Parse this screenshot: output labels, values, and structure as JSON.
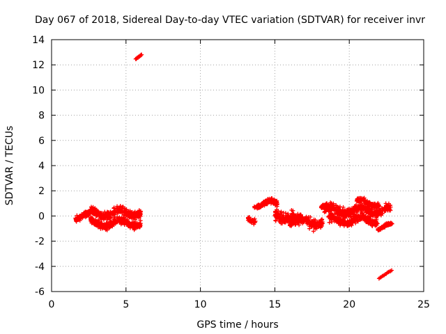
{
  "chart_data": {
    "type": "scatter",
    "title": "Day 067 of 2018, Sidereal Day-to-day VTEC variation (SDTVAR) for receiver invr",
    "xlabel": "GPS time / hours",
    "ylabel": "SDTVAR / TECUs",
    "xlim": [
      0,
      25
    ],
    "ylim": [
      -6,
      14
    ],
    "xticks": [
      0,
      5,
      10,
      15,
      20,
      25
    ],
    "yticks": [
      -6,
      -4,
      -2,
      0,
      2,
      4,
      6,
      8,
      10,
      12,
      14
    ],
    "grid": true,
    "marker": "plus",
    "color": "#ff0000",
    "clusters": [
      {
        "x_range": [
          1.6,
          2.6
        ],
        "y_center": 0.0,
        "y_spread": 0.35
      },
      {
        "x_range": [
          2.6,
          6.0
        ],
        "y_center": 0.25,
        "y_spread": 0.45
      },
      {
        "x_range": [
          2.6,
          6.0
        ],
        "y_center": -0.55,
        "y_spread": 0.4
      },
      {
        "x_range": [
          13.2,
          13.7
        ],
        "y_center": -0.2,
        "y_spread": 0.3
      },
      {
        "x_range": [
          13.6,
          15.2
        ],
        "y_center": 0.95,
        "y_spread": 0.3
      },
      {
        "x_range": [
          15.0,
          16.3
        ],
        "y_center": 0.0,
        "y_spread": 0.6
      },
      {
        "x_range": [
          16.0,
          18.2
        ],
        "y_center": -0.45,
        "y_spread": 0.6
      },
      {
        "x_range": [
          18.1,
          18.5
        ],
        "y_center": 0.8,
        "y_spread": 0.15
      },
      {
        "x_range": [
          18.3,
          22.8
        ],
        "y_center": 0.45,
        "y_spread": 0.5
      },
      {
        "x_range": [
          18.6,
          21.9
        ],
        "y_center": -0.35,
        "y_spread": 0.45
      },
      {
        "x_range": [
          21.9,
          22.9
        ],
        "y_center": -0.85,
        "y_spread": 0.15
      },
      {
        "x_range": [
          20.5,
          22.0
        ],
        "y_center": 1.05,
        "y_spread": 0.25
      }
    ],
    "trails": [
      {
        "x": [
          5.65,
          6.05
        ],
        "y": [
          12.45,
          12.8
        ]
      },
      {
        "x": [
          22.0,
          22.85
        ],
        "y": [
          -4.95,
          -4.3
        ]
      }
    ]
  }
}
